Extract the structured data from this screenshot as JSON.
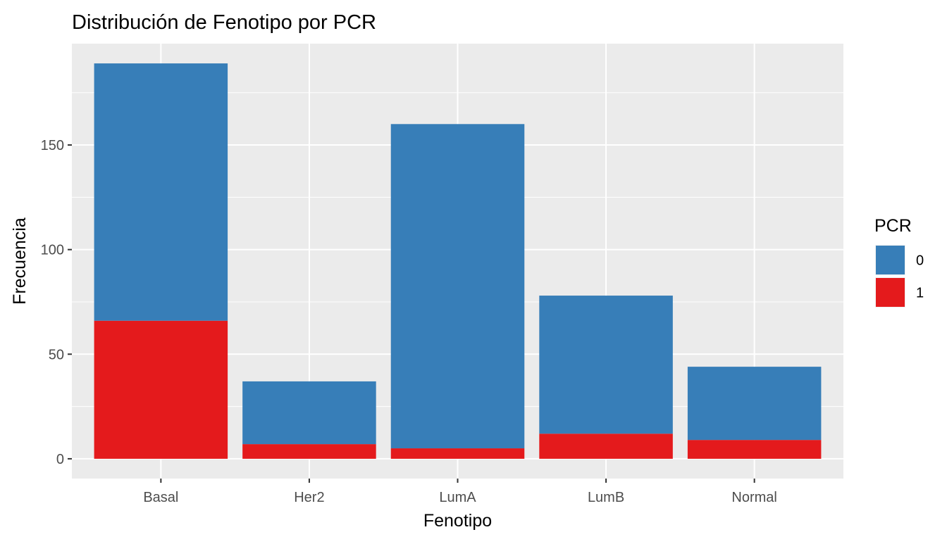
{
  "chart_data": {
    "type": "bar",
    "stacked": true,
    "title": "Distribución de Fenotipo por PCR",
    "xlabel": "Fenotipo",
    "ylabel": "Frecuencia",
    "categories": [
      "Basal",
      "Her2",
      "LumA",
      "LumB",
      "Normal"
    ],
    "series": [
      {
        "name": "0",
        "color": "#377EB8",
        "values": [
          123,
          30,
          155,
          66,
          35
        ]
      },
      {
        "name": "1",
        "color": "#E41A1C",
        "values": [
          66,
          7,
          5,
          12,
          9
        ]
      }
    ],
    "ylim": [
      -9.45,
      198.45
    ],
    "yticks": [
      0,
      50,
      100,
      150
    ],
    "ytick_labels": [
      "0",
      "50",
      "100",
      "150"
    ],
    "grid": true,
    "panel_background": "#EBEBEB",
    "legend": {
      "title": "PCR",
      "placement": "right",
      "entries": [
        {
          "label": "0",
          "color": "#377EB8"
        },
        {
          "label": "1",
          "color": "#E41A1C"
        }
      ]
    }
  }
}
